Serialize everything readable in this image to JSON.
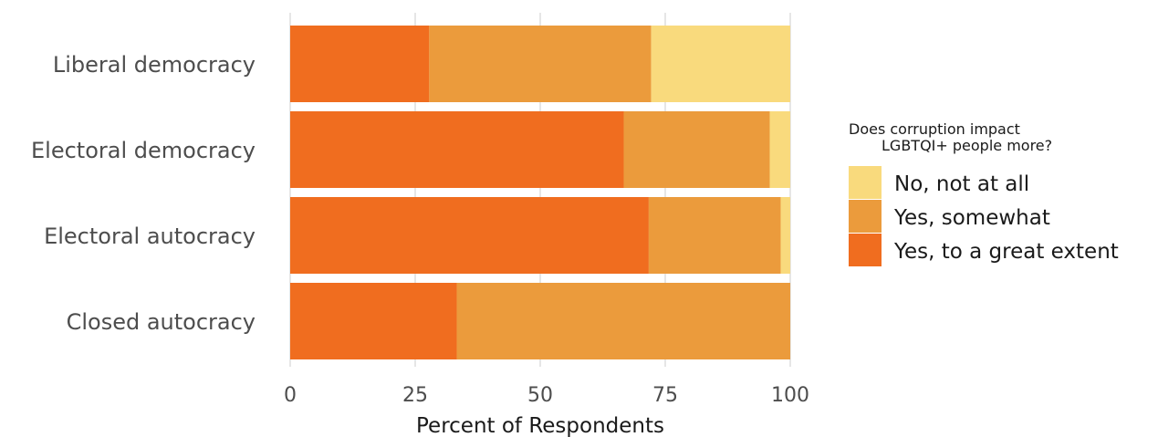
{
  "chart_data": {
    "type": "bar",
    "orientation": "horizontal",
    "stacked": true,
    "categories": [
      "Liberal democracy",
      "Electoral democracy",
      "Electoral autocracy",
      "Closed autocracy"
    ],
    "series": [
      {
        "name": "Yes, to a great extent",
        "color": "#f06d1f",
        "values": [
          27.8,
          66.7,
          71.7,
          33.3
        ]
      },
      {
        "name": "Yes, somewhat",
        "color": "#eb9b3c",
        "values": [
          44.4,
          29.2,
          26.4,
          66.7
        ]
      },
      {
        "name": "No, not at all",
        "color": "#f9da7d",
        "values": [
          27.8,
          4.1,
          1.9,
          0
        ]
      }
    ],
    "xlabel": "Percent of Respondents",
    "ylabel": "",
    "xlim": [
      0,
      100
    ],
    "x_ticks": [
      "0",
      "25",
      "50",
      "75",
      "100"
    ],
    "grid": true,
    "legend": {
      "title_lines": [
        "Does corruption impact",
        "LGBTQI+ people more?"
      ],
      "placement": "right",
      "order": [
        "No, not at all",
        "Yes, somewhat",
        "Yes, to a great extent"
      ]
    }
  }
}
